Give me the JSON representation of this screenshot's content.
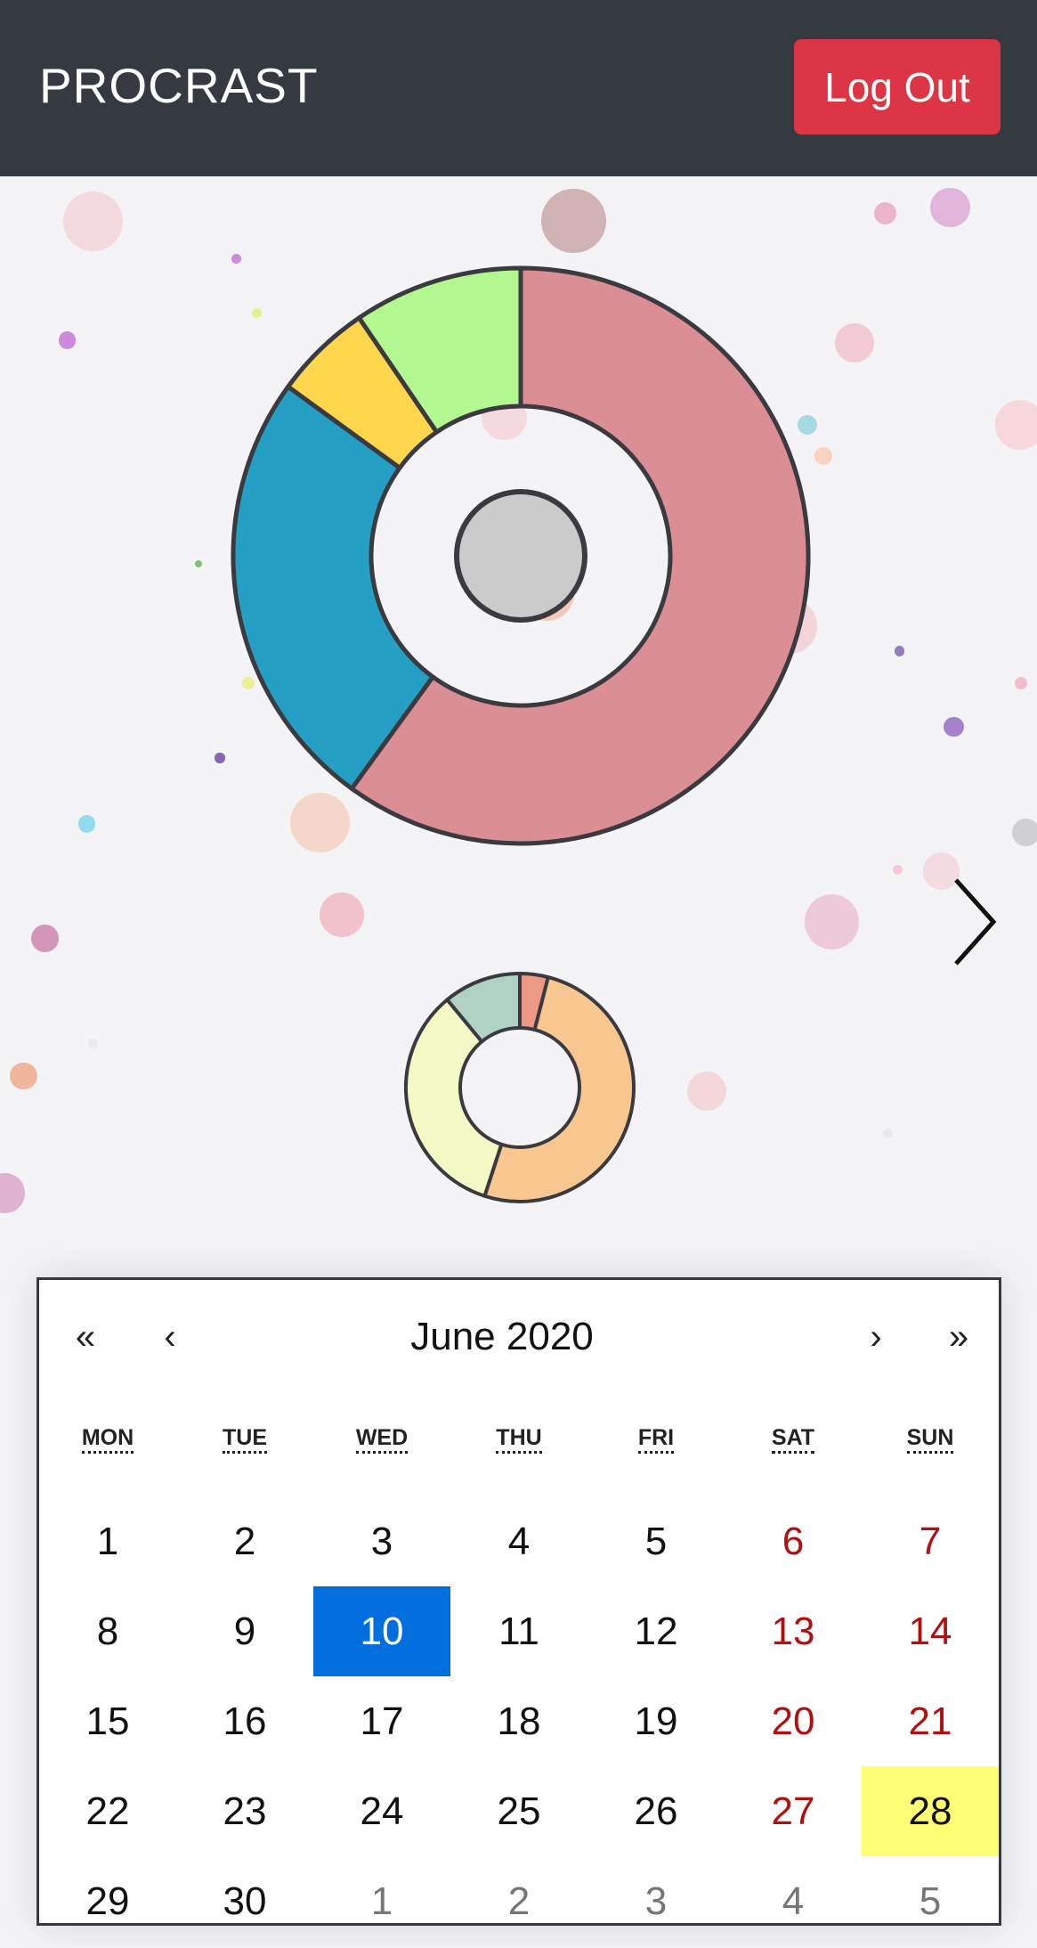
{
  "app": {
    "brand": "PROCRAST",
    "logout_label": "Log Out"
  },
  "main_chart": {
    "type": "donut",
    "segments": [
      {
        "value": 60,
        "color": "#dc8e95"
      },
      {
        "value": 25,
        "color": "#259fc3"
      },
      {
        "value": 5.5,
        "color": "#fdd64c"
      },
      {
        "value": 9.5,
        "color": "#b2f78f"
      }
    ],
    "center_color": "#cbcbcb"
  },
  "small_chart": {
    "type": "donut",
    "segments": [
      {
        "value": 4,
        "color": "#ec9986"
      },
      {
        "value": 51,
        "color": "#f8c78f"
      },
      {
        "value": 34,
        "color": "#f4f8c5"
      },
      {
        "value": 11,
        "color": "#afd2c3"
      }
    ]
  },
  "calendar": {
    "prev_year": "«",
    "prev_month": "‹",
    "title": "June 2020",
    "next_month": "›",
    "next_year": "»",
    "weekdays": [
      "MON",
      "TUE",
      "WED",
      "THU",
      "FRI",
      "SAT",
      "SUN"
    ],
    "days": [
      {
        "label": "1",
        "kind": "current"
      },
      {
        "label": "2",
        "kind": "current"
      },
      {
        "label": "3",
        "kind": "current"
      },
      {
        "label": "4",
        "kind": "current"
      },
      {
        "label": "5",
        "kind": "current"
      },
      {
        "label": "6",
        "kind": "weekend"
      },
      {
        "label": "7",
        "kind": "weekend"
      },
      {
        "label": "8",
        "kind": "current"
      },
      {
        "label": "9",
        "kind": "current"
      },
      {
        "label": "10",
        "kind": "selected"
      },
      {
        "label": "11",
        "kind": "current"
      },
      {
        "label": "12",
        "kind": "current"
      },
      {
        "label": "13",
        "kind": "weekend"
      },
      {
        "label": "14",
        "kind": "weekend"
      },
      {
        "label": "15",
        "kind": "current"
      },
      {
        "label": "16",
        "kind": "current"
      },
      {
        "label": "17",
        "kind": "current"
      },
      {
        "label": "18",
        "kind": "current"
      },
      {
        "label": "19",
        "kind": "current"
      },
      {
        "label": "20",
        "kind": "weekend"
      },
      {
        "label": "21",
        "kind": "weekend"
      },
      {
        "label": "22",
        "kind": "current"
      },
      {
        "label": "23",
        "kind": "current"
      },
      {
        "label": "24",
        "kind": "current"
      },
      {
        "label": "25",
        "kind": "current"
      },
      {
        "label": "26",
        "kind": "current"
      },
      {
        "label": "27",
        "kind": "weekend"
      },
      {
        "label": "28",
        "kind": "today"
      },
      {
        "label": "29",
        "kind": "current"
      },
      {
        "label": "30",
        "kind": "current"
      },
      {
        "label": "1",
        "kind": "other"
      },
      {
        "label": "2",
        "kind": "other"
      },
      {
        "label": "3",
        "kind": "other"
      },
      {
        "label": "4",
        "kind": "other"
      },
      {
        "label": "5",
        "kind": "other"
      }
    ]
  },
  "colors": {
    "navbar": "#343a40",
    "logout": "#dc3545",
    "selected_day": "#006edc",
    "today_highlight": "#ffff76",
    "weekend_text": "#b01010"
  },
  "icons": {
    "next_chart": "chevron-right-icon"
  }
}
